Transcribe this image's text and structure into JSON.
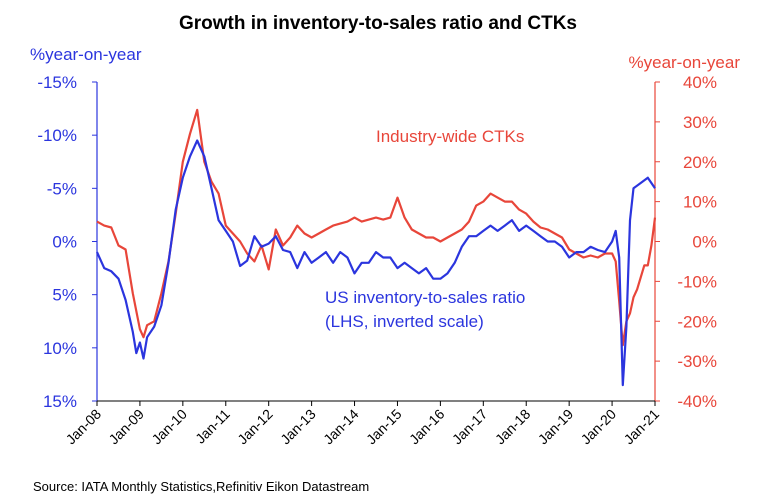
{
  "colors": {
    "blue": "#2b35de",
    "red": "#e8463a",
    "axis": "#000000"
  },
  "chart_data": {
    "type": "line",
    "title": "Growth in inventory-to-sales ratio and CTKs",
    "source": "Source: IATA Monthly Statistics,Refinitiv Eikon Datastream",
    "left_axis": {
      "unit_label": "%year-on-year",
      "range": [
        -15,
        15
      ],
      "inverted": true,
      "tick_labels": [
        "-15%",
        "-10%",
        "-5%",
        "0%",
        "5%",
        "10%",
        "15%"
      ],
      "tick_values": [
        -15,
        -10,
        -5,
        0,
        5,
        10,
        15
      ]
    },
    "right_axis": {
      "unit_label": "%year-on-year",
      "range": [
        -40,
        40
      ],
      "tick_labels": [
        "40%",
        "30%",
        "20%",
        "10%",
        "0%",
        "-10%",
        "-20%",
        "-30%",
        "-40%"
      ],
      "tick_values": [
        40,
        30,
        20,
        10,
        0,
        -10,
        -20,
        -30,
        -40
      ]
    },
    "x_axis": {
      "start": "2008-01",
      "end": "2021-01",
      "tick_labels": [
        "Jan-08",
        "Jan-09",
        "Jan-10",
        "Jan-11",
        "Jan-12",
        "Jan-13",
        "Jan-14",
        "Jan-15",
        "Jan-16",
        "Jan-17",
        "Jan-18",
        "Jan-19",
        "Jan-20",
        "Jan-21"
      ]
    },
    "series": [
      {
        "name": "US inventory-to-sales ratio",
        "annotation": [
          "US inventory-to-sales ratio",
          "(LHS, inverted scale)"
        ],
        "axis": "left",
        "color": "#2b35de",
        "points": [
          [
            "2008-01",
            1.0
          ],
          [
            "2008-03",
            2.5
          ],
          [
            "2008-05",
            2.8
          ],
          [
            "2008-07",
            3.5
          ],
          [
            "2008-09",
            5.5
          ],
          [
            "2008-11",
            8.5
          ],
          [
            "2008-12",
            10.5
          ],
          [
            "2009-01",
            9.5
          ],
          [
            "2009-02",
            11.0
          ],
          [
            "2009-03",
            9.0
          ],
          [
            "2009-05",
            8.0
          ],
          [
            "2009-07",
            6.0
          ],
          [
            "2009-09",
            2.0
          ],
          [
            "2009-11",
            -3.0
          ],
          [
            "2010-01",
            -6.0
          ],
          [
            "2010-03",
            -8.0
          ],
          [
            "2010-05",
            -9.5
          ],
          [
            "2010-07",
            -8.0
          ],
          [
            "2010-09",
            -5.0
          ],
          [
            "2010-11",
            -2.0
          ],
          [
            "2011-01",
            -1.0
          ],
          [
            "2011-03",
            0.0
          ],
          [
            "2011-05",
            2.3
          ],
          [
            "2011-07",
            1.8
          ],
          [
            "2011-09",
            -0.5
          ],
          [
            "2011-11",
            0.5
          ],
          [
            "2012-01",
            0.2
          ],
          [
            "2012-03",
            -0.5
          ],
          [
            "2012-05",
            0.8
          ],
          [
            "2012-07",
            1.0
          ],
          [
            "2012-09",
            2.5
          ],
          [
            "2012-11",
            1.0
          ],
          [
            "2013-01",
            2.0
          ],
          [
            "2013-03",
            1.5
          ],
          [
            "2013-05",
            1.0
          ],
          [
            "2013-07",
            2.0
          ],
          [
            "2013-09",
            1.0
          ],
          [
            "2013-11",
            1.5
          ],
          [
            "2014-01",
            3.0
          ],
          [
            "2014-03",
            2.0
          ],
          [
            "2014-05",
            2.0
          ],
          [
            "2014-07",
            1.0
          ],
          [
            "2014-09",
            1.5
          ],
          [
            "2014-11",
            1.5
          ],
          [
            "2015-01",
            2.5
          ],
          [
            "2015-03",
            2.0
          ],
          [
            "2015-05",
            2.5
          ],
          [
            "2015-07",
            3.0
          ],
          [
            "2015-09",
            2.5
          ],
          [
            "2015-11",
            3.5
          ],
          [
            "2016-01",
            3.5
          ],
          [
            "2016-03",
            3.0
          ],
          [
            "2016-05",
            2.0
          ],
          [
            "2016-07",
            0.5
          ],
          [
            "2016-09",
            -0.5
          ],
          [
            "2016-11",
            -0.5
          ],
          [
            "2017-01",
            -1.0
          ],
          [
            "2017-03",
            -1.5
          ],
          [
            "2017-05",
            -1.0
          ],
          [
            "2017-07",
            -1.5
          ],
          [
            "2017-09",
            -2.0
          ],
          [
            "2017-11",
            -1.0
          ],
          [
            "2018-01",
            -1.5
          ],
          [
            "2018-03",
            -1.0
          ],
          [
            "2018-05",
            -0.5
          ],
          [
            "2018-07",
            0.0
          ],
          [
            "2018-09",
            0.0
          ],
          [
            "2018-11",
            0.5
          ],
          [
            "2019-01",
            1.5
          ],
          [
            "2019-03",
            1.0
          ],
          [
            "2019-05",
            1.0
          ],
          [
            "2019-07",
            0.5
          ],
          [
            "2019-09",
            0.8
          ],
          [
            "2019-11",
            1.0
          ],
          [
            "2020-01",
            0.0
          ],
          [
            "2020-02",
            -1.0
          ],
          [
            "2020-03",
            1.5
          ],
          [
            "2020-04",
            13.5
          ],
          [
            "2020-05",
            8.0
          ],
          [
            "2020-06",
            -2.0
          ],
          [
            "2020-07",
            -5.0
          ],
          [
            "2020-09",
            -5.5
          ],
          [
            "2020-11",
            -6.0
          ],
          [
            "2021-01",
            -5.0
          ]
        ]
      },
      {
        "name": "Industry-wide CTKs",
        "annotation": [
          "Industry-wide CTKs"
        ],
        "axis": "right",
        "color": "#e8463a",
        "points": [
          [
            "2008-01",
            5.0
          ],
          [
            "2008-03",
            4.0
          ],
          [
            "2008-05",
            3.5
          ],
          [
            "2008-07",
            -1.0
          ],
          [
            "2008-09",
            -2.0
          ],
          [
            "2008-11",
            -13.0
          ],
          [
            "2009-01",
            -22.0
          ],
          [
            "2009-02",
            -24.0
          ],
          [
            "2009-03",
            -21.0
          ],
          [
            "2009-05",
            -20.0
          ],
          [
            "2009-07",
            -13.0
          ],
          [
            "2009-09",
            -5.0
          ],
          [
            "2009-11",
            7.0
          ],
          [
            "2010-01",
            20.0
          ],
          [
            "2010-03",
            27.0
          ],
          [
            "2010-05",
            33.0
          ],
          [
            "2010-07",
            20.0
          ],
          [
            "2010-09",
            15.0
          ],
          [
            "2010-11",
            12.0
          ],
          [
            "2011-01",
            4.0
          ],
          [
            "2011-03",
            2.0
          ],
          [
            "2011-05",
            0.0
          ],
          [
            "2011-07",
            -3.0
          ],
          [
            "2011-09",
            -5.0
          ],
          [
            "2011-11",
            -1.0
          ],
          [
            "2012-01",
            -7.0
          ],
          [
            "2012-03",
            3.0
          ],
          [
            "2012-05",
            -1.0
          ],
          [
            "2012-07",
            1.0
          ],
          [
            "2012-09",
            4.0
          ],
          [
            "2012-11",
            2.0
          ],
          [
            "2013-01",
            1.0
          ],
          [
            "2013-03",
            2.0
          ],
          [
            "2013-05",
            3.0
          ],
          [
            "2013-07",
            4.0
          ],
          [
            "2013-09",
            4.5
          ],
          [
            "2013-11",
            5.0
          ],
          [
            "2014-01",
            6.0
          ],
          [
            "2014-03",
            5.0
          ],
          [
            "2014-05",
            5.5
          ],
          [
            "2014-07",
            6.0
          ],
          [
            "2014-09",
            5.5
          ],
          [
            "2014-11",
            6.0
          ],
          [
            "2015-01",
            11.0
          ],
          [
            "2015-03",
            6.0
          ],
          [
            "2015-05",
            3.0
          ],
          [
            "2015-07",
            2.0
          ],
          [
            "2015-09",
            1.0
          ],
          [
            "2015-11",
            1.0
          ],
          [
            "2016-01",
            0.0
          ],
          [
            "2016-03",
            1.0
          ],
          [
            "2016-05",
            2.0
          ],
          [
            "2016-07",
            3.0
          ],
          [
            "2016-09",
            5.0
          ],
          [
            "2016-11",
            9.0
          ],
          [
            "2017-01",
            10.0
          ],
          [
            "2017-03",
            12.0
          ],
          [
            "2017-05",
            11.0
          ],
          [
            "2017-07",
            10.0
          ],
          [
            "2017-09",
            10.0
          ],
          [
            "2017-11",
            8.0
          ],
          [
            "2018-01",
            7.0
          ],
          [
            "2018-03",
            5.0
          ],
          [
            "2018-05",
            3.5
          ],
          [
            "2018-07",
            3.0
          ],
          [
            "2018-09",
            2.0
          ],
          [
            "2018-11",
            1.0
          ],
          [
            "2019-01",
            -2.0
          ],
          [
            "2019-03",
            -3.0
          ],
          [
            "2019-05",
            -4.0
          ],
          [
            "2019-07",
            -3.5
          ],
          [
            "2019-09",
            -4.0
          ],
          [
            "2019-11",
            -3.0
          ],
          [
            "2020-01",
            -3.0
          ],
          [
            "2020-02",
            -5.0
          ],
          [
            "2020-03",
            -15.0
          ],
          [
            "2020-04",
            -26.0
          ],
          [
            "2020-05",
            -20.0
          ],
          [
            "2020-06",
            -18.0
          ],
          [
            "2020-07",
            -14.0
          ],
          [
            "2020-08",
            -12.0
          ],
          [
            "2020-09",
            -9.0
          ],
          [
            "2020-10",
            -6.0
          ],
          [
            "2020-11",
            -6.0
          ],
          [
            "2020-12",
            -1.0
          ],
          [
            "2021-01",
            6.0
          ]
        ]
      }
    ]
  }
}
